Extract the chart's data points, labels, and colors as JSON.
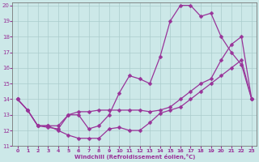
{
  "xlabel": "Windchill (Refroidissement éolien,°C)",
  "bg_color": "#cce8e8",
  "line_color": "#993399",
  "grid_color": "#aacccc",
  "xlim": [
    0,
    23
  ],
  "ylim": [
    11,
    20
  ],
  "xticks": [
    0,
    1,
    2,
    3,
    4,
    5,
    6,
    7,
    8,
    9,
    10,
    11,
    12,
    13,
    14,
    15,
    16,
    17,
    18,
    19,
    20,
    21,
    22,
    23
  ],
  "yticks": [
    11,
    12,
    13,
    14,
    15,
    16,
    17,
    18,
    19,
    20
  ],
  "curve_upper_x": [
    0,
    1,
    2,
    3,
    4,
    5,
    6,
    7,
    8,
    9,
    10,
    11,
    12,
    13,
    14,
    15,
    16,
    17,
    18,
    19,
    20,
    21,
    22,
    23
  ],
  "curve_upper_y": [
    14.0,
    13.3,
    12.3,
    12.2,
    12.1,
    13.0,
    13.0,
    12.1,
    12.3,
    13.0,
    14.4,
    15.5,
    15.3,
    15.0,
    16.7,
    19.0,
    20.0,
    20.0,
    19.3,
    19.5,
    18.0,
    17.0,
    16.2,
    14.0
  ],
  "curve_lower_x": [
    0,
    1,
    2,
    3,
    4,
    5,
    6,
    7,
    8,
    9,
    10,
    11,
    12,
    13,
    14,
    15,
    16,
    17,
    18,
    19,
    20,
    21,
    22,
    23
  ],
  "curve_lower_y": [
    14.0,
    13.3,
    12.3,
    12.3,
    12.0,
    11.7,
    11.5,
    11.5,
    11.5,
    12.1,
    12.2,
    12.0,
    12.0,
    12.5,
    13.1,
    13.3,
    13.5,
    14.0,
    14.5,
    15.0,
    15.5,
    16.0,
    16.5,
    14.0
  ],
  "curve_mid_x": [
    0,
    1,
    2,
    3,
    4,
    5,
    6,
    7,
    8,
    9,
    10,
    11,
    12,
    13,
    14,
    15,
    16,
    17,
    18,
    19,
    20,
    21,
    22,
    23
  ],
  "curve_mid_y": [
    14.0,
    13.3,
    12.3,
    12.3,
    12.3,
    13.0,
    13.2,
    13.2,
    13.3,
    13.3,
    13.3,
    13.3,
    13.3,
    13.2,
    13.3,
    13.5,
    14.0,
    14.5,
    15.0,
    15.3,
    16.5,
    17.5,
    18.0,
    14.0
  ]
}
